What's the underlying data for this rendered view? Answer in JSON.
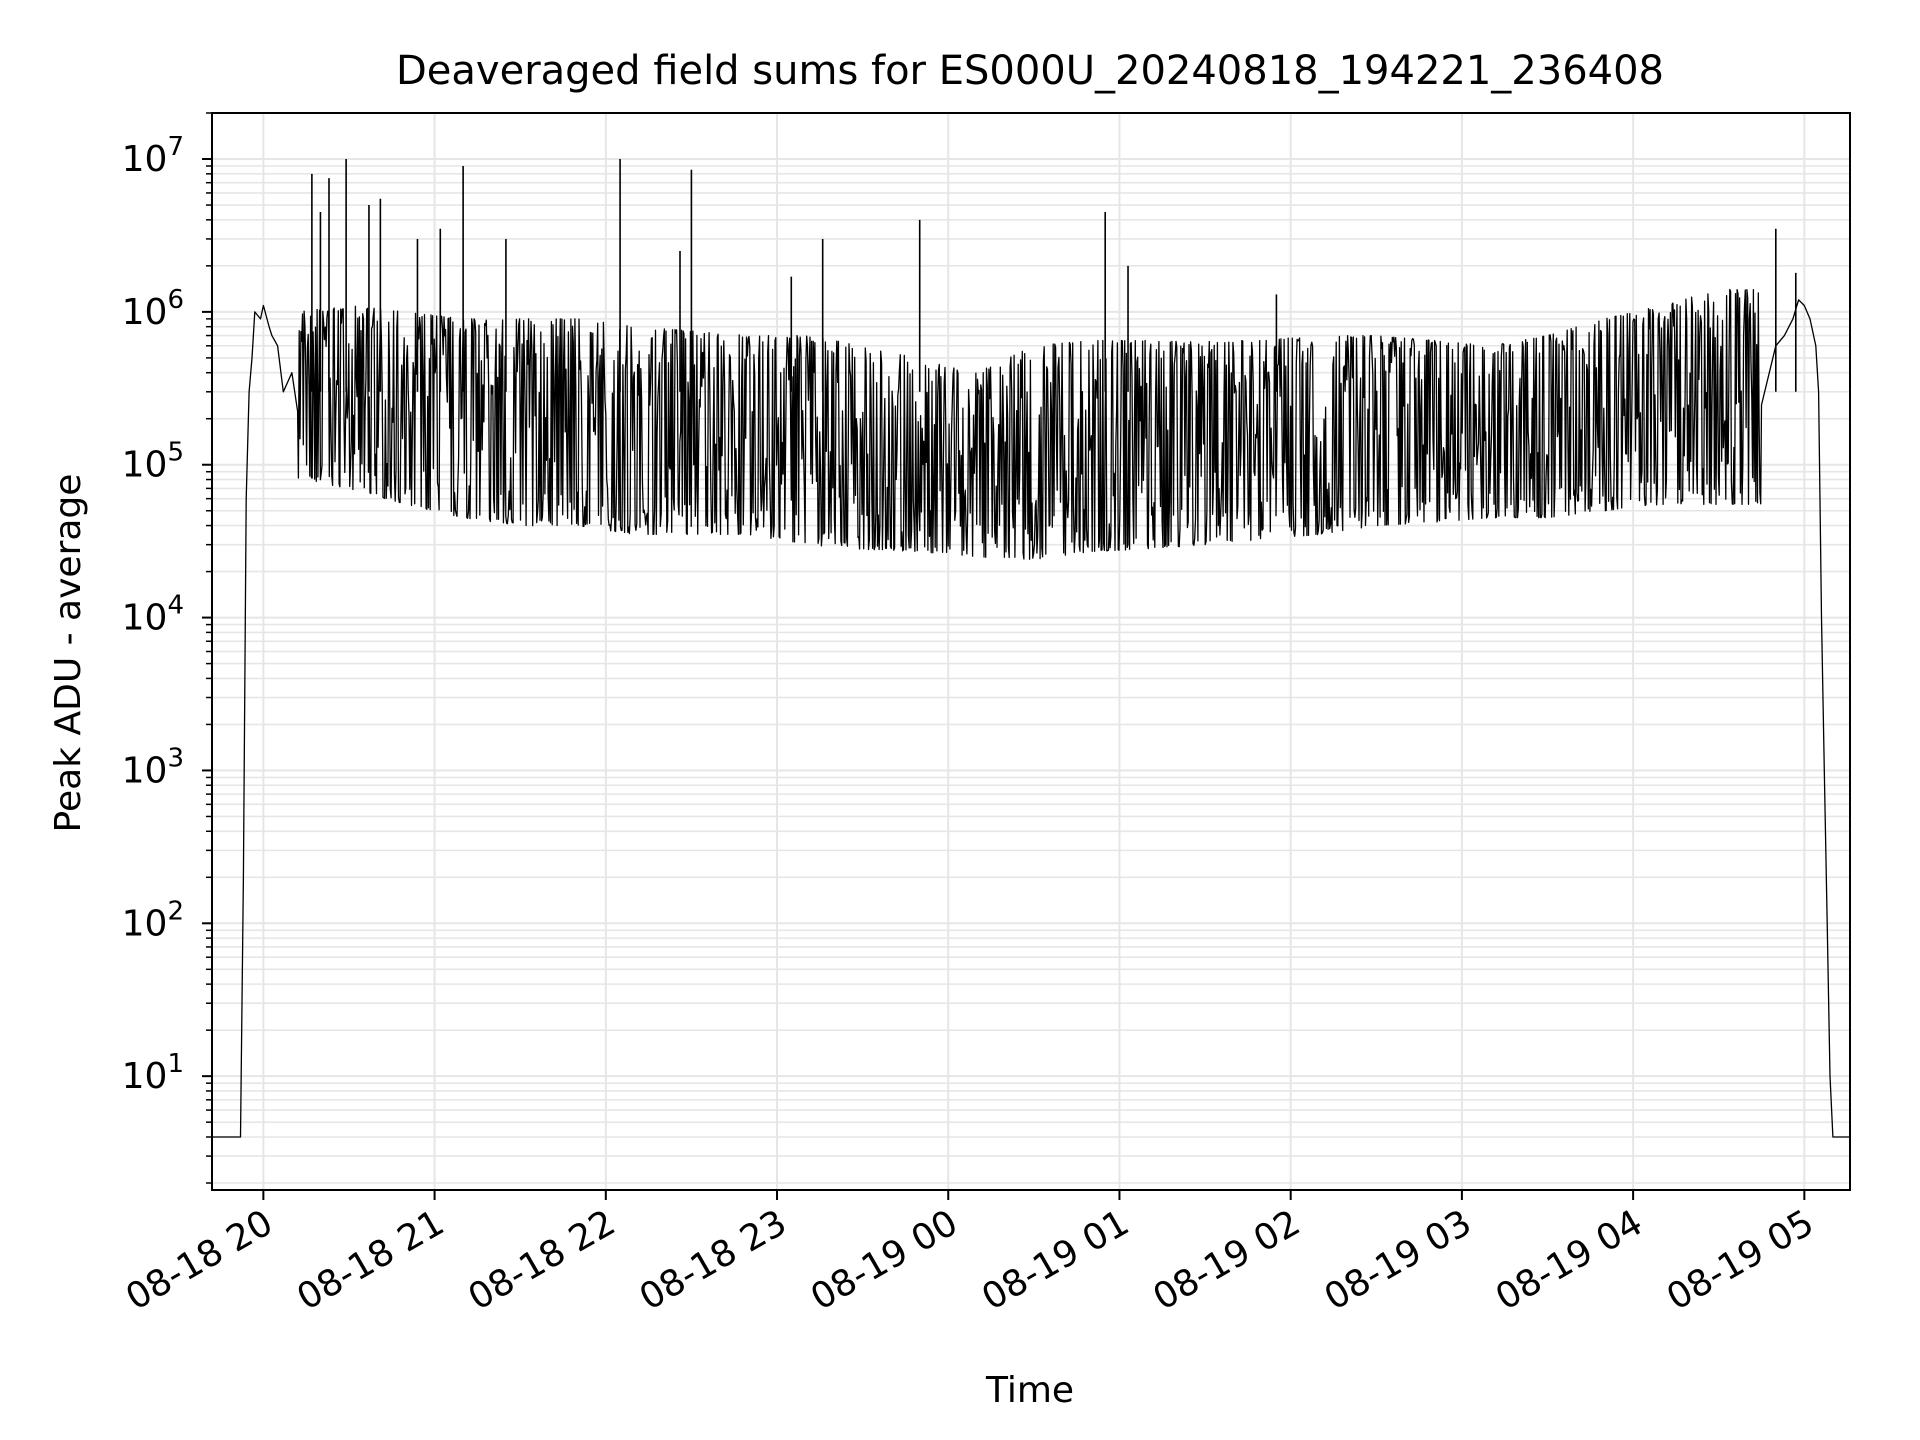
{
  "chart_data": {
    "type": "line",
    "title": "Deaveraged field sums for ES000U_20240818_194221_236408",
    "xlabel": "Time",
    "ylabel": "Peak ADU - average",
    "yscale": "log",
    "xlim": [
      "2024-08-18 19:42",
      "2024-08-19 05:16"
    ],
    "ylim": [
      1.8,
      20000000
    ],
    "grid": "major and minor",
    "legend": "none",
    "line_color": "#000000",
    "grid_color": "#e6e6e6",
    "x_ticks": [
      {
        "value": "2024-08-18 20:00",
        "label": "08-18 20"
      },
      {
        "value": "2024-08-18 21:00",
        "label": "08-18 21"
      },
      {
        "value": "2024-08-18 22:00",
        "label": "08-18 22"
      },
      {
        "value": "2024-08-18 23:00",
        "label": "08-18 23"
      },
      {
        "value": "2024-08-19 00:00",
        "label": "08-19 00"
      },
      {
        "value": "2024-08-19 01:00",
        "label": "08-19 01"
      },
      {
        "value": "2024-08-19 02:00",
        "label": "08-19 02"
      },
      {
        "value": "2024-08-19 03:00",
        "label": "08-19 03"
      },
      {
        "value": "2024-08-19 04:00",
        "label": "08-19 04"
      },
      {
        "value": "2024-08-19 05:00",
        "label": "08-19 05"
      }
    ],
    "y_ticks": [
      {
        "value": 10,
        "base": "10",
        "exp": "1"
      },
      {
        "value": 100,
        "base": "10",
        "exp": "2"
      },
      {
        "value": 1000,
        "base": "10",
        "exp": "3"
      },
      {
        "value": 10000,
        "base": "10",
        "exp": "4"
      },
      {
        "value": 100000,
        "base": "10",
        "exp": "5"
      },
      {
        "value": 1000000,
        "base": "10",
        "exp": "6"
      },
      {
        "value": 10000000,
        "base": "10",
        "exp": "7"
      }
    ],
    "series": [
      {
        "x": [
          "2024-08-18 19:42",
          "2024-08-18 19:50",
          "2024-08-18 19:52",
          "2024-08-18 19:53",
          "2024-08-18 19:54",
          "2024-08-18 19:55",
          "2024-08-18 19:56",
          "2024-08-18 19:57",
          "2024-08-18 19:59",
          "2024-08-18 20:00",
          "2024-08-18 20:02",
          "2024-08-18 20:03",
          "2024-08-18 20:05",
          "2024-08-18 20:07",
          "2024-08-18 20:10",
          "2024-08-18 20:12",
          "2024-08-18 20:14",
          "2024-08-18 20:15",
          "2024-08-18 20:16",
          "2024-08-18 20:17",
          "2024-08-18 20:18",
          "2024-08-18 20:20",
          "2024-08-18 20:22",
          "2024-08-18 20:24",
          "2024-08-18 20:25",
          "2024-08-18 20:27",
          "2024-08-18 20:30",
          "2024-08-18 20:32",
          "2024-08-18 20:33",
          "2024-08-18 20:35",
          "2024-08-18 20:38",
          "2024-08-18 20:40",
          "2024-08-18 20:42",
          "2024-08-18 20:43",
          "2024-08-18 20:45",
          "2024-08-18 20:48",
          "2024-08-18 20:50",
          "2024-08-18 20:53",
          "2024-08-18 20:55",
          "2024-08-18 20:58",
          "2024-08-18 21:00",
          "2024-08-18 21:03",
          "2024-08-18 21:06",
          "2024-08-18 21:10",
          "2024-08-18 21:15",
          "2024-08-18 21:20",
          "2024-08-18 21:25",
          "2024-08-18 21:30",
          "2024-08-18 21:35",
          "2024-08-18 21:40",
          "2024-08-18 21:45",
          "2024-08-18 21:50",
          "2024-08-18 21:55",
          "2024-08-18 22:00",
          "2024-08-18 22:05",
          "2024-08-18 22:10",
          "2024-08-18 22:15",
          "2024-08-18 22:20",
          "2024-08-18 22:25",
          "2024-08-18 22:30",
          "2024-08-18 22:35",
          "2024-08-18 22:40",
          "2024-08-18 22:45",
          "2024-08-18 22:50",
          "2024-08-18 22:55",
          "2024-08-18 23:00",
          "2024-08-18 23:10",
          "2024-08-18 23:20",
          "2024-08-18 23:30",
          "2024-08-18 23:40",
          "2024-08-18 23:50",
          "2024-08-19 00:00",
          "2024-08-19 00:10",
          "2024-08-19 00:20",
          "2024-08-19 00:30",
          "2024-08-19 00:40",
          "2024-08-19 00:50",
          "2024-08-19 01:00",
          "2024-08-19 01:10",
          "2024-08-19 01:20",
          "2024-08-19 01:30",
          "2024-08-19 01:40",
          "2024-08-19 01:50",
          "2024-08-19 02:00",
          "2024-08-19 02:10",
          "2024-08-19 02:20",
          "2024-08-19 02:30",
          "2024-08-19 02:40",
          "2024-08-19 02:50",
          "2024-08-19 03:00",
          "2024-08-19 03:10",
          "2024-08-19 03:20",
          "2024-08-19 03:30",
          "2024-08-19 03:40",
          "2024-08-19 03:50",
          "2024-08-19 04:00",
          "2024-08-19 04:10",
          "2024-08-19 04:20",
          "2024-08-19 04:30",
          "2024-08-19 04:40",
          "2024-08-19 04:45",
          "2024-08-19 04:50",
          "2024-08-19 04:53",
          "2024-08-19 04:56",
          "2024-08-19 04:58",
          "2024-08-19 05:00",
          "2024-08-19 05:02",
          "2024-08-19 05:04",
          "2024-08-19 05:05",
          "2024-08-19 05:06",
          "2024-08-19 05:07",
          "2024-08-19 05:08",
          "2024-08-19 05:09",
          "2024-08-19 05:10",
          "2024-08-19 05:11",
          "2024-08-19 05:16"
        ],
        "values": [
          4,
          4,
          4,
          200,
          60000,
          300000,
          500000,
          1000000,
          900000,
          1100000,
          800000,
          700000,
          600000,
          300000,
          400000,
          700000,
          300000,
          800000,
          120000,
          900000,
          200000,
          800000,
          150000,
          600000,
          1100000,
          700000,
          100000,
          600000,
          90000,
          700000,
          120000,
          500000,
          100000,
          900000,
          200000,
          80000,
          500000,
          100000,
          60000,
          400000,
          200000,
          60000,
          400000,
          70000,
          300000,
          50000,
          200000,
          700000,
          60000,
          500000,
          40000,
          300000,
          80000,
          60000,
          40000,
          35000,
          500000,
          40000,
          600000,
          50000,
          500000,
          45000,
          500000,
          40000,
          600000,
          300000,
          40000,
          400000,
          35000,
          200000,
          40000,
          80000,
          30000,
          50000,
          200000,
          30000,
          400000,
          40000,
          300000,
          35000,
          400000,
          50000,
          300000,
          45000,
          400000,
          50000,
          300000,
          60000,
          300000,
          60000,
          200000,
          50000,
          250000,
          60000,
          200000,
          70000,
          300000,
          80000,
          300000,
          90000,
          500000,
          600000,
          700000,
          900000,
          1200000,
          1100000,
          900000,
          600000,
          300000,
          10000,
          1000,
          100,
          10,
          4,
          4,
          4
        ]
      }
    ],
    "noise_envelope": {
      "x": [
        "2024-08-18 20:12",
        "2024-08-18 20:30",
        "2024-08-18 20:50",
        "2024-08-18 21:10",
        "2024-08-18 21:30",
        "2024-08-18 21:50",
        "2024-08-18 22:10",
        "2024-08-18 22:30",
        "2024-08-18 22:50",
        "2024-08-18 23:10",
        "2024-08-18 23:30",
        "2024-08-18 23:50",
        "2024-08-19 00:10",
        "2024-08-19 00:30",
        "2024-08-19 00:50",
        "2024-08-19 01:10",
        "2024-08-19 01:30",
        "2024-08-19 01:50",
        "2024-08-19 02:10",
        "2024-08-19 02:30",
        "2024-08-19 02:50",
        "2024-08-19 03:10",
        "2024-08-19 03:30",
        "2024-08-19 03:50",
        "2024-08-19 04:10",
        "2024-08-19 04:30",
        "2024-08-19 04:45"
      ],
      "low": [
        80000,
        70000,
        55000,
        45000,
        40000,
        40000,
        35000,
        35000,
        35000,
        30000,
        28000,
        27000,
        25000,
        24000,
        27000,
        28000,
        30000,
        32000,
        35000,
        40000,
        42000,
        45000,
        45000,
        50000,
        55000,
        55000,
        55000
      ],
      "high": [
        1000000,
        1100000,
        1000000,
        900000,
        900000,
        900000,
        800000,
        750000,
        700000,
        700000,
        600000,
        500000,
        400000,
        600000,
        650000,
        650000,
        650000,
        650000,
        700000,
        700000,
        650000,
        600000,
        700000,
        900000,
        1100000,
        1400000,
        1400000
      ]
    },
    "spikes": [
      {
        "x": "2024-08-18 20:17",
        "y": 8000000
      },
      {
        "x": "2024-08-18 20:20",
        "y": 4500000
      },
      {
        "x": "2024-08-18 20:23",
        "y": 7500000
      },
      {
        "x": "2024-08-18 20:29",
        "y": 10000000
      },
      {
        "x": "2024-08-18 20:37",
        "y": 5000000
      },
      {
        "x": "2024-08-18 20:41",
        "y": 5500000
      },
      {
        "x": "2024-08-18 20:54",
        "y": 3000000
      },
      {
        "x": "2024-08-18 21:02",
        "y": 3500000
      },
      {
        "x": "2024-08-18 21:10",
        "y": 9000000
      },
      {
        "x": "2024-08-18 21:25",
        "y": 3000000
      },
      {
        "x": "2024-08-18 22:05",
        "y": 10000000
      },
      {
        "x": "2024-08-18 22:26",
        "y": 2500000
      },
      {
        "x": "2024-08-18 22:30",
        "y": 8500000
      },
      {
        "x": "2024-08-18 23:05",
        "y": 1700000
      },
      {
        "x": "2024-08-18 23:16",
        "y": 3000000
      },
      {
        "x": "2024-08-18 23:50",
        "y": 4000000
      },
      {
        "x": "2024-08-19 00:55",
        "y": 4500000
      },
      {
        "x": "2024-08-19 01:03",
        "y": 2000000
      },
      {
        "x": "2024-08-19 01:55",
        "y": 1300000
      },
      {
        "x": "2024-08-19 04:50",
        "y": 3500000
      },
      {
        "x": "2024-08-19 04:57",
        "y": 1800000
      }
    ]
  }
}
